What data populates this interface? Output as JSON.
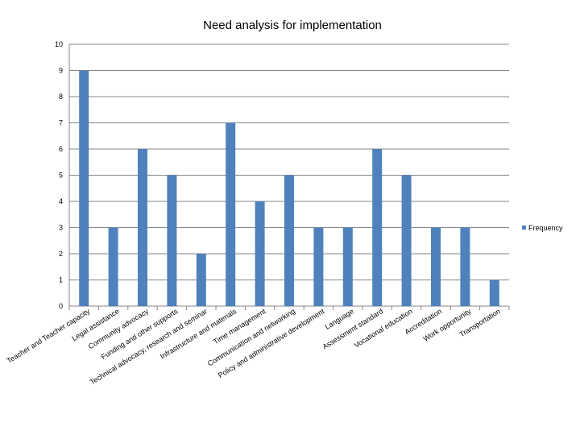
{
  "chart_data": {
    "type": "bar",
    "title": "Need analysis for implementation",
    "xlabel": "",
    "ylabel": "",
    "ylim": [
      0,
      10
    ],
    "yticks": [
      0,
      1,
      2,
      3,
      4,
      5,
      6,
      7,
      8,
      9,
      10
    ],
    "grid": true,
    "legend": "right",
    "bar_color": "#4f81bd",
    "categories": [
      "Teacher and Teacher capacity",
      "Legal assistance",
      "Community advocacy",
      "Funding and other supports",
      "Technical advocacy, research and seminar",
      "Infrastructure and materials",
      "Time management",
      "Communication and networking",
      "Policy and administrative development",
      "Language",
      "Assessment standard",
      "Vocational education",
      "Accreditation",
      "Work opportunity",
      "Transportation"
    ],
    "series": [
      {
        "name": "Frequency",
        "values": [
          9,
          3,
          6,
          5,
          2,
          7,
          4,
          5,
          3,
          3,
          6,
          5,
          3,
          3,
          1
        ]
      }
    ]
  }
}
